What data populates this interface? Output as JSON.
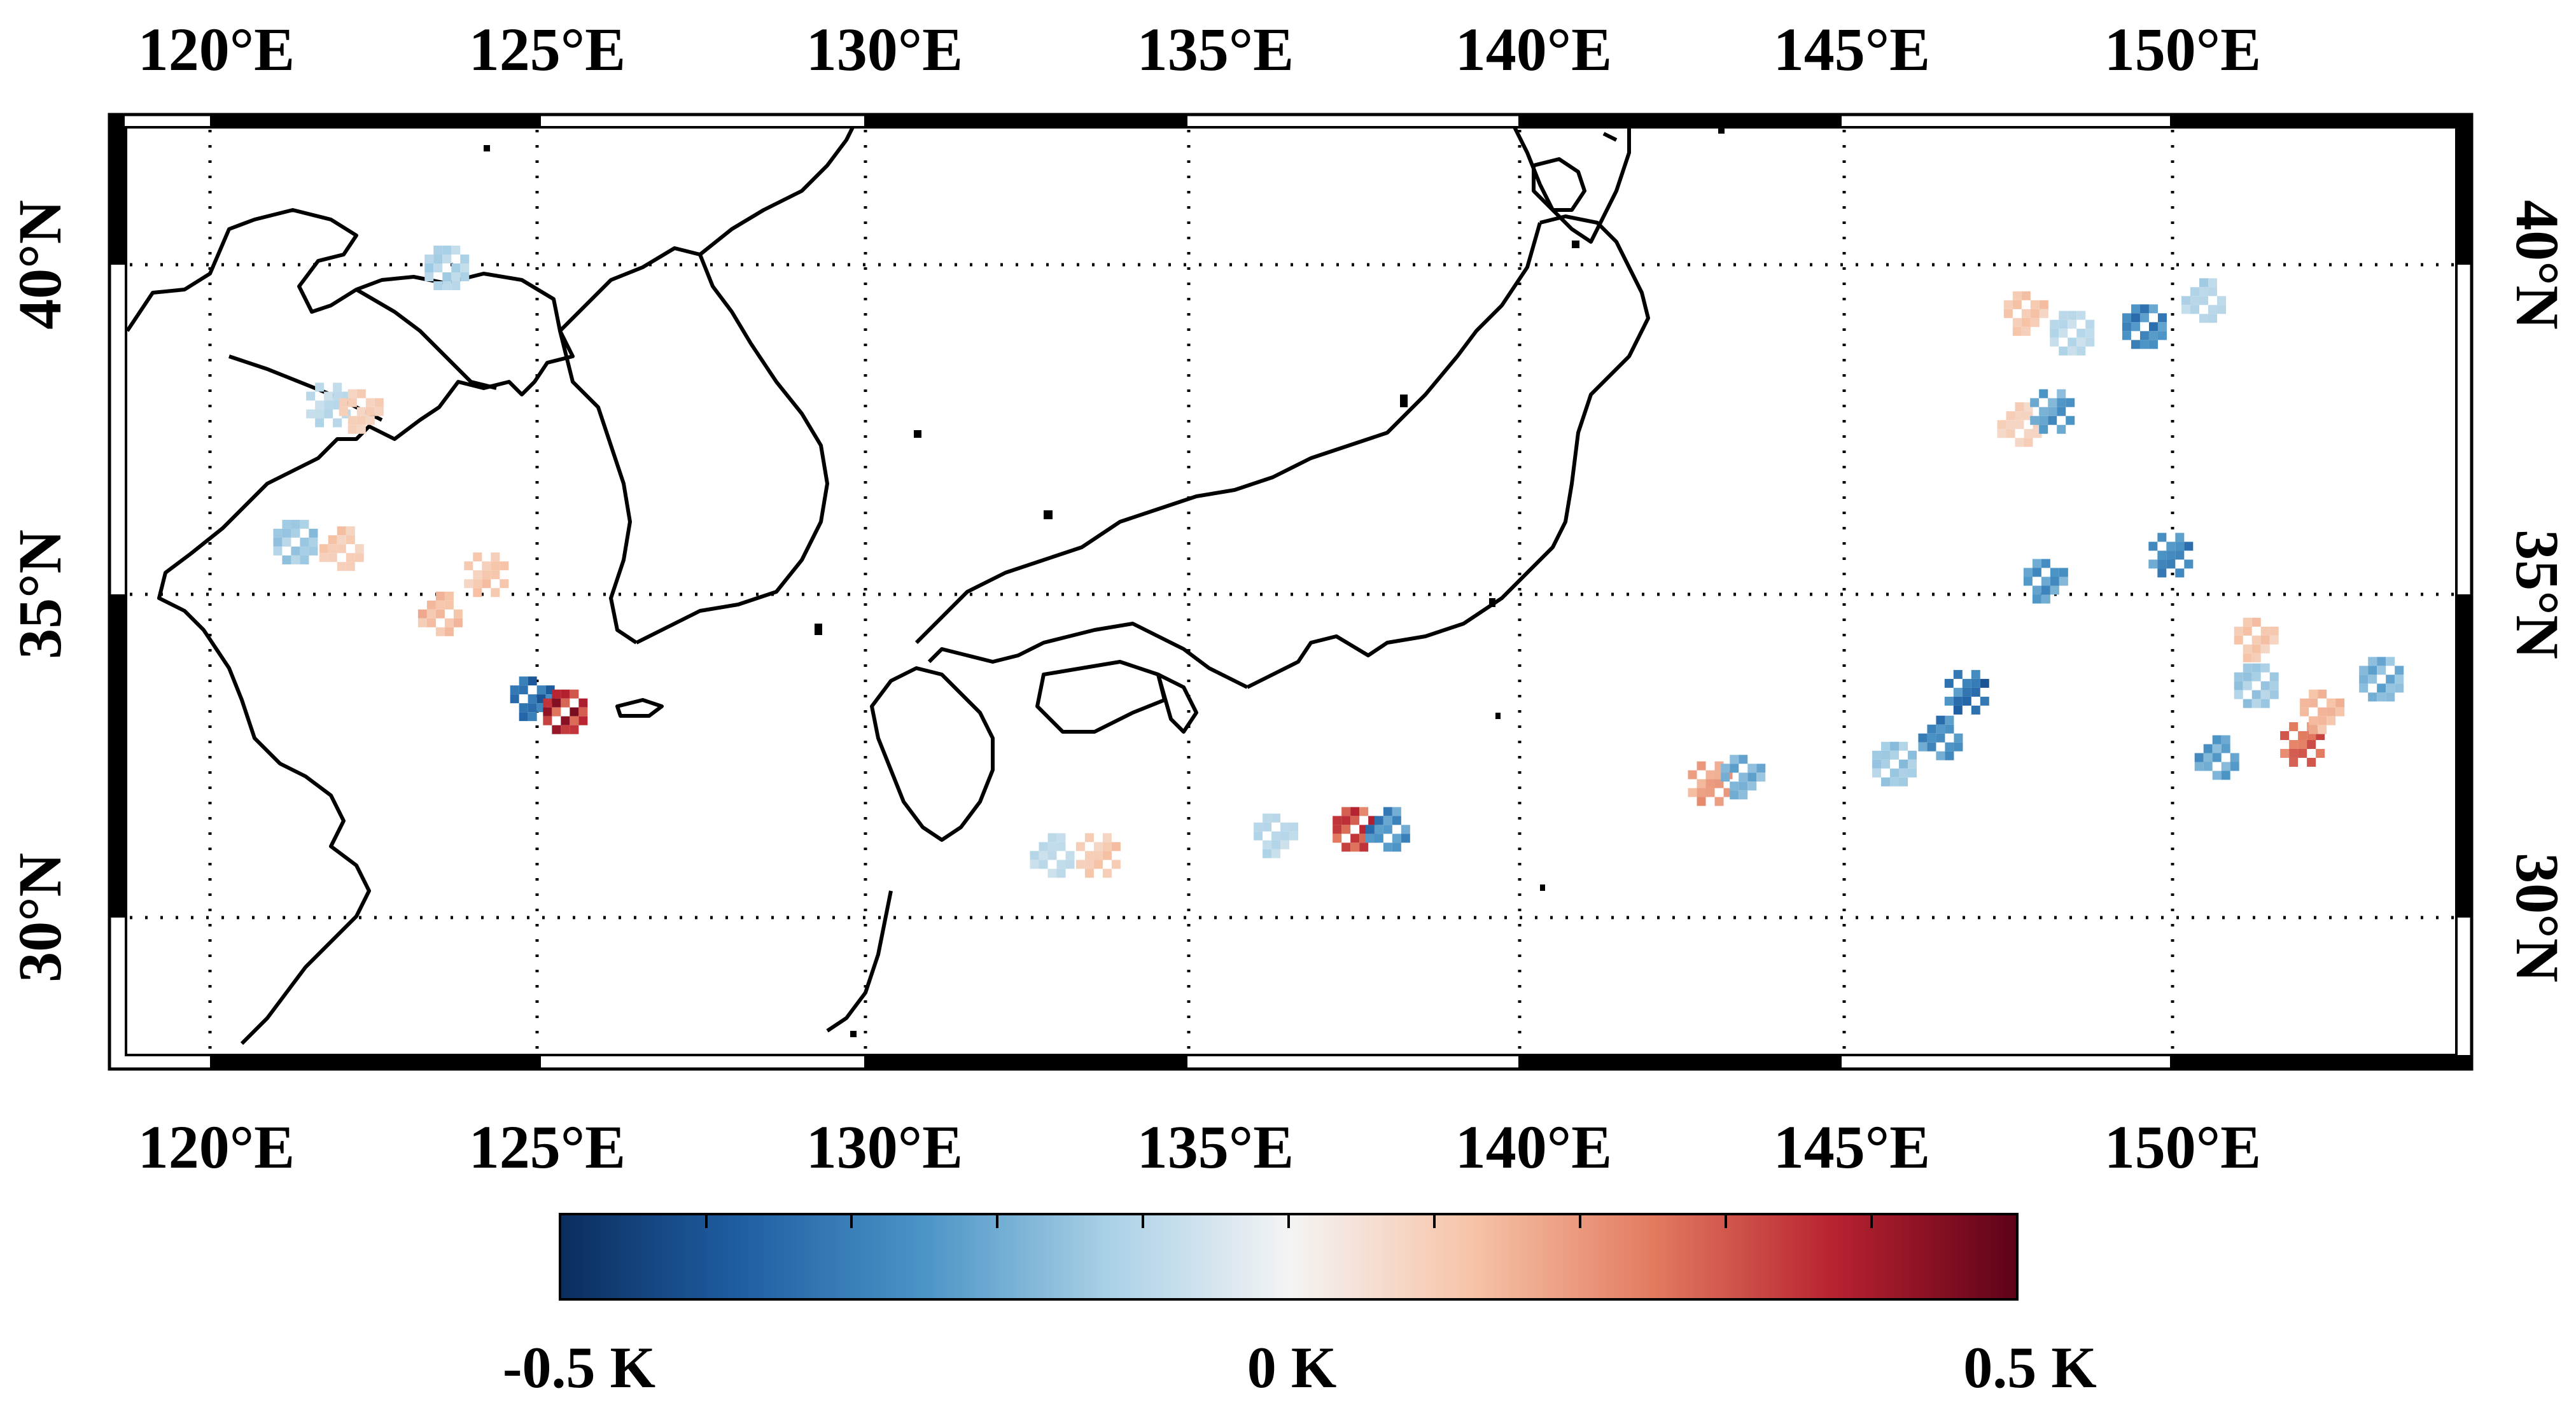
{
  "map": {
    "lon_ticks": [
      "120°E",
      "125°E",
      "130°E",
      "135°E",
      "140°E",
      "145°E",
      "150°E"
    ],
    "lat_ticks": [
      "40°N",
      "35°N",
      "30°N"
    ],
    "colorbar": {
      "min_label": "-0.5 K",
      "mid_label": "0 K",
      "max_label": "0.5 K",
      "colors": [
        "#0b2d5e",
        "#1f5fa3",
        "#4b94c6",
        "#a9d0e6",
        "#f4f4f4",
        "#f6c4a8",
        "#e27b60",
        "#b72230",
        "#5e0218"
      ]
    }
  },
  "chart_data": {
    "type": "heatmap",
    "title": "",
    "xlabel": "",
    "ylabel": "",
    "lon_range": [
      118.5,
      154.5
    ],
    "lat_range": [
      28.2,
      42.7
    ],
    "value_range": [
      -0.5,
      0.5
    ],
    "unit": "K",
    "patches": [
      {
        "lon": 121.3,
        "lat": 35.8,
        "value": -0.15
      },
      {
        "lon": 122.0,
        "lat": 35.7,
        "value": 0.12
      },
      {
        "lon": 121.8,
        "lat": 37.9,
        "value": -0.1
      },
      {
        "lon": 122.3,
        "lat": 37.8,
        "value": 0.1
      },
      {
        "lon": 123.6,
        "lat": 40.0,
        "value": -0.12
      },
      {
        "lon": 123.5,
        "lat": 34.7,
        "value": 0.15
      },
      {
        "lon": 124.2,
        "lat": 35.3,
        "value": 0.12
      },
      {
        "lon": 124.9,
        "lat": 33.4,
        "value": -0.35
      },
      {
        "lon": 125.4,
        "lat": 33.2,
        "value": 0.4
      },
      {
        "lon": 132.8,
        "lat": 31.0,
        "value": -0.1
      },
      {
        "lon": 133.5,
        "lat": 31.0,
        "value": 0.12
      },
      {
        "lon": 136.2,
        "lat": 31.3,
        "value": -0.1
      },
      {
        "lon": 137.4,
        "lat": 31.4,
        "value": 0.35
      },
      {
        "lon": 137.9,
        "lat": 31.4,
        "value": -0.3
      },
      {
        "lon": 142.8,
        "lat": 32.1,
        "value": 0.2
      },
      {
        "lon": 143.3,
        "lat": 32.2,
        "value": -0.2
      },
      {
        "lon": 145.6,
        "lat": 32.4,
        "value": -0.15
      },
      {
        "lon": 146.3,
        "lat": 32.8,
        "value": -0.3
      },
      {
        "lon": 146.7,
        "lat": 33.5,
        "value": -0.35
      },
      {
        "lon": 147.6,
        "lat": 39.3,
        "value": 0.12
      },
      {
        "lon": 148.3,
        "lat": 39.0,
        "value": -0.1
      },
      {
        "lon": 147.5,
        "lat": 37.6,
        "value": 0.1
      },
      {
        "lon": 148.0,
        "lat": 37.8,
        "value": -0.25
      },
      {
        "lon": 147.9,
        "lat": 35.2,
        "value": -0.25
      },
      {
        "lon": 149.4,
        "lat": 39.1,
        "value": -0.3
      },
      {
        "lon": 150.3,
        "lat": 39.5,
        "value": -0.12
      },
      {
        "lon": 149.8,
        "lat": 35.6,
        "value": -0.3
      },
      {
        "lon": 151.1,
        "lat": 34.3,
        "value": 0.12
      },
      {
        "lon": 151.1,
        "lat": 33.6,
        "value": -0.15
      },
      {
        "lon": 150.5,
        "lat": 32.5,
        "value": -0.25
      },
      {
        "lon": 151.8,
        "lat": 32.7,
        "value": 0.3
      },
      {
        "lon": 152.1,
        "lat": 33.2,
        "value": 0.15
      },
      {
        "lon": 153.0,
        "lat": 33.7,
        "value": -0.2
      }
    ]
  }
}
